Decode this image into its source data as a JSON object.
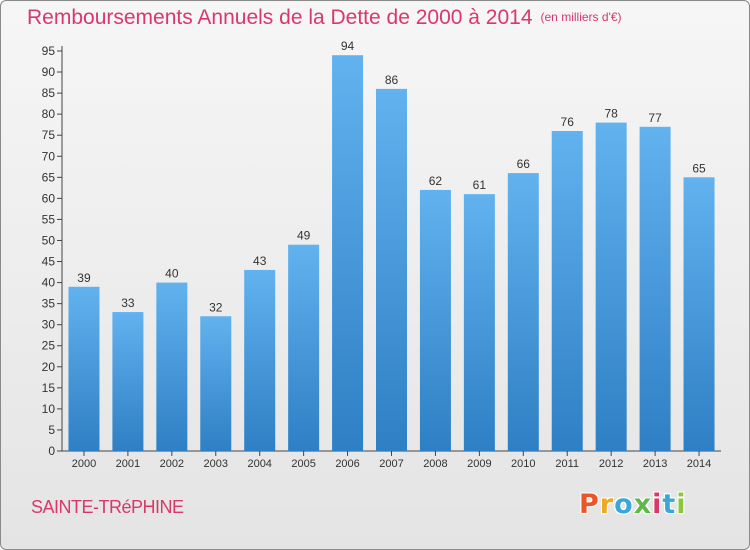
{
  "header": {
    "title": "Remboursements Annuels de la Dette de 2000 à 2014",
    "unit": "(en milliers d'€)"
  },
  "footer": {
    "commune": "SAINTE-TRéPHINE",
    "logo": "Proxiti",
    "logo_colors": [
      "#e8562a",
      "#f0a81e",
      "#3aa7d9",
      "#5fb848",
      "#d9386b",
      "#3aa7d9",
      "#8cc63f"
    ]
  },
  "colors": {
    "bar_light": "#62b2ef",
    "bar_dark": "#2e7fc4",
    "title": "#d9386b",
    "text": "#333333"
  },
  "chart_data": {
    "type": "bar",
    "title": "Remboursements Annuels de la Dette de 2000 à 2014",
    "xlabel": "",
    "ylabel": "",
    "categories": [
      "2000",
      "2001",
      "2002",
      "2003",
      "2004",
      "2005",
      "2006",
      "2007",
      "2008",
      "2009",
      "2010",
      "2011",
      "2012",
      "2013",
      "2014"
    ],
    "values": [
      39,
      33,
      40,
      32,
      43,
      49,
      94,
      86,
      62,
      61,
      66,
      76,
      78,
      77,
      65
    ],
    "ylim": [
      0,
      95
    ],
    "ytick_step": 5,
    "grid": false,
    "legend": "none"
  }
}
